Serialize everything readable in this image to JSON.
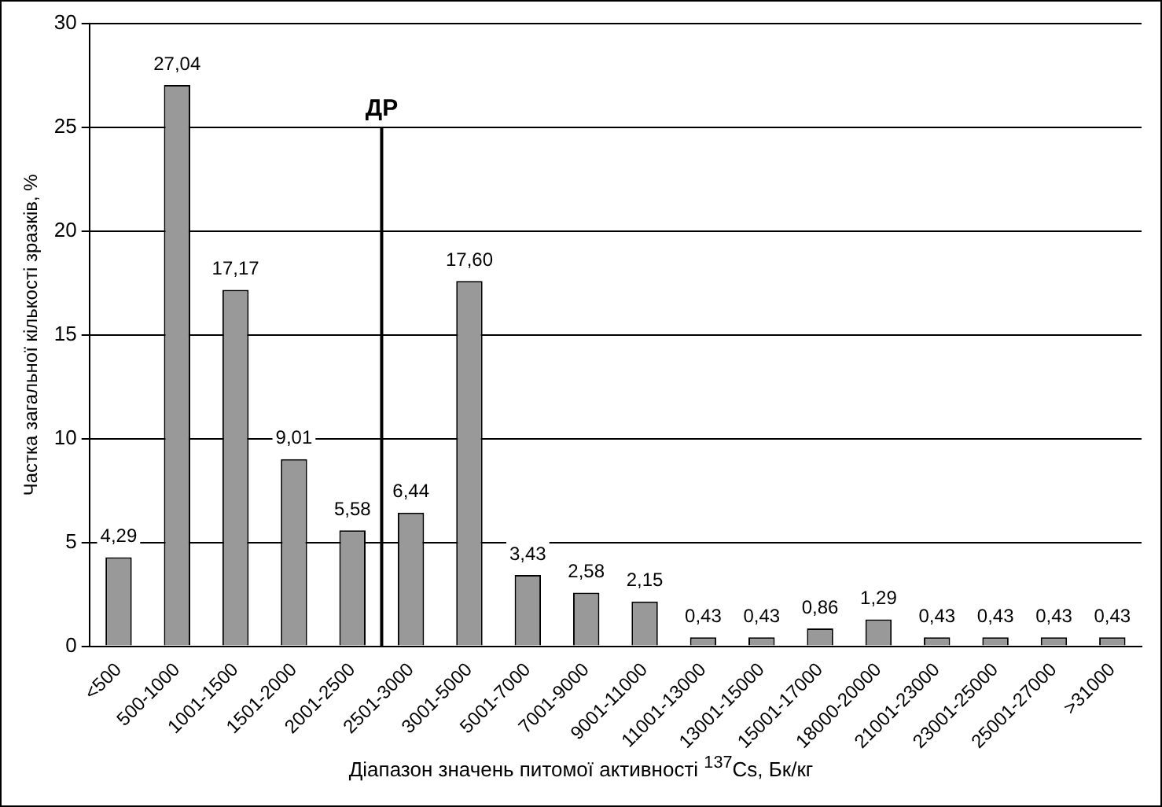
{
  "chart_data": {
    "type": "bar",
    "categories": [
      "<500",
      "500-1000",
      "1001-1500",
      "1501-2000",
      "2001-2500",
      "2501-3000",
      "3001-5000",
      "5001-7000",
      "7001-9000",
      "9001-11000",
      "11001-13000",
      "13001-15000",
      "15001-17000",
      "18000-20000",
      "21001-23000",
      "23001-25000",
      "25001-27000",
      ">31000"
    ],
    "values": [
      4.29,
      27.04,
      17.17,
      9.01,
      5.58,
      6.44,
      17.6,
      3.43,
      2.58,
      2.15,
      0.43,
      0.43,
      0.86,
      1.29,
      0.43,
      0.43,
      0.43,
      0.43
    ],
    "value_labels": [
      "4,29",
      "27,04",
      "17,17",
      "9,01",
      "5,58",
      "6,44",
      "17,60",
      "3,43",
      "2,58",
      "2,15",
      "0,43",
      "0,43",
      "0,86",
      "1,29",
      "0,43",
      "0,43",
      "0,43",
      "0,43"
    ],
    "color": "#999999",
    "xlabel": "Діапазон значень питомої активності $^{137}$Cs, Бк/кг",
    "ylabel": "Частка загальної кількості зразків, %",
    "ylim": [
      0,
      30
    ],
    "yticks": [
      0,
      5,
      10,
      15,
      20,
      25,
      30
    ],
    "grid": "y",
    "legend": false,
    "ref_lines": [
      {
        "axis": "x",
        "value": "2501-3000",
        "label": "ДР"
      }
    ]
  }
}
